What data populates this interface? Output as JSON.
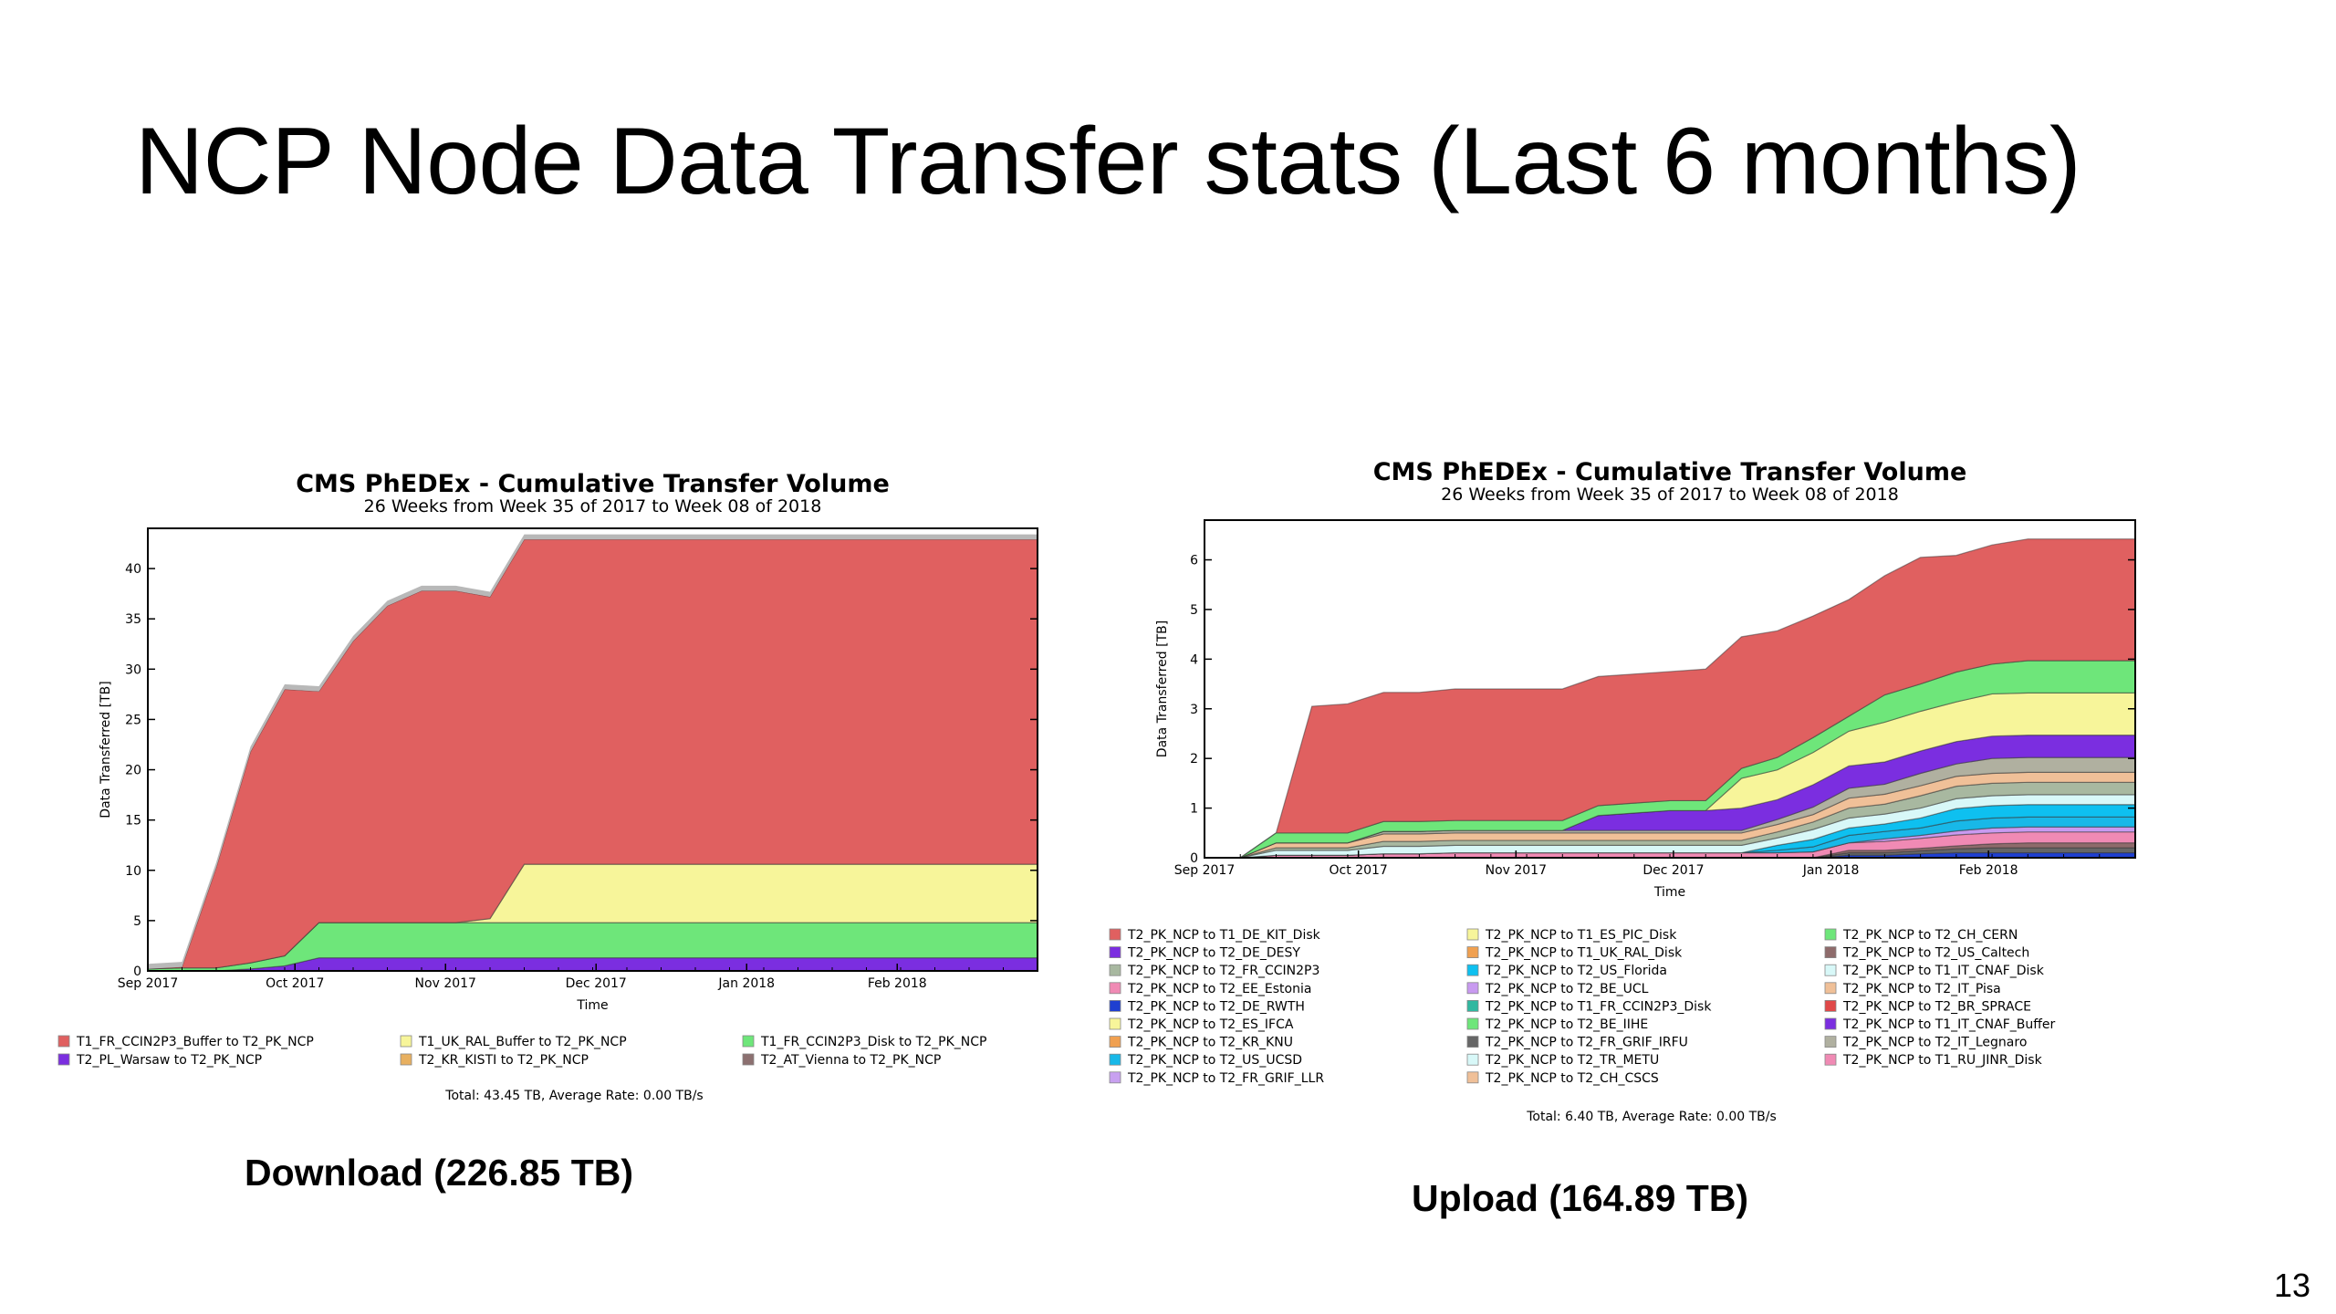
{
  "slide": {
    "title": "NCP Node Data Transfer stats (Last 6 months)",
    "caption_left": "Download (226.85 TB)",
    "caption_right": "Upload (164.89 TB)",
    "page_number": "13"
  },
  "chart_data": [
    {
      "type": "area",
      "stacked": true,
      "title": "CMS PhEDEx - Cumulative Transfer Volume",
      "subtitle": "26 Weeks from Week 35 of 2017 to Week 08 of 2018",
      "xlabel": "Time",
      "ylabel": "Data Transferred [TB]",
      "xlim": [
        0,
        26
      ],
      "ylim": [
        0,
        44
      ],
      "yticks": [
        0,
        5,
        10,
        15,
        20,
        25,
        30,
        35,
        40
      ],
      "x_tick_labels": [
        {
          "x": 0,
          "label": "Sep 2017"
        },
        {
          "x": 4.3,
          "label": "Oct 2017"
        },
        {
          "x": 8.7,
          "label": "Nov 2017"
        },
        {
          "x": 13.1,
          "label": "Dec 2017"
        },
        {
          "x": 17.5,
          "label": "Jan 2018"
        },
        {
          "x": 21.9,
          "label": "Feb 2018"
        }
      ],
      "grid": false,
      "legend_position": "bottom",
      "footer": "Total: 43.45 TB, Average Rate: 0.00 TB/s",
      "x": [
        0,
        1,
        2,
        3,
        4,
        5,
        6,
        7,
        8,
        9,
        10,
        11,
        12,
        13,
        14,
        15,
        16,
        17,
        18,
        19,
        20,
        21,
        22,
        23,
        24,
        25,
        26
      ],
      "series": [
        {
          "name": "T2_PL_Warsaw to T2_PK_NCP",
          "color": "#7b2ee0",
          "values": [
            0,
            0,
            0,
            0.2,
            0.5,
            1.3,
            1.3,
            1.3,
            1.3,
            1.3,
            1.3,
            1.3,
            1.3,
            1.3,
            1.3,
            1.3,
            1.3,
            1.3,
            1.3,
            1.3,
            1.3,
            1.3,
            1.3,
            1.3,
            1.3,
            1.3,
            1.3
          ]
        },
        {
          "name": "T1_FR_CCIN2P3_Disk to T2_PK_NCP",
          "color": "#6ee67a",
          "values": [
            0.2,
            0.3,
            0.3,
            0.6,
            1.0,
            3.5,
            3.5,
            3.5,
            3.5,
            3.5,
            3.5,
            3.5,
            3.5,
            3.5,
            3.5,
            3.5,
            3.5,
            3.5,
            3.5,
            3.5,
            3.5,
            3.5,
            3.5,
            3.5,
            3.5,
            3.5,
            3.5
          ]
        },
        {
          "name": "T1_UK_RAL_Buffer to T2_PK_NCP",
          "color": "#f7f59a",
          "values": [
            0,
            0,
            0,
            0,
            0,
            0,
            0,
            0,
            0,
            0,
            0.4,
            5.8,
            5.8,
            5.8,
            5.8,
            5.8,
            5.8,
            5.8,
            5.8,
            5.8,
            5.8,
            5.8,
            5.8,
            5.8,
            5.8,
            5.8,
            5.8
          ]
        },
        {
          "name": "T2_KR_KISTI to T2_PK_NCP",
          "color": "#e8b060",
          "values": [
            0,
            0,
            0,
            0,
            0,
            0,
            0,
            0,
            0,
            0,
            0,
            0,
            0,
            0,
            0,
            0,
            0,
            0,
            0,
            0,
            0,
            0,
            0,
            0,
            0,
            0,
            0
          ]
        },
        {
          "name": "T2_AT_Vienna to T2_PK_NCP",
          "color": "#8c7070",
          "values": [
            0,
            0,
            0,
            0,
            0,
            0,
            0,
            0,
            0,
            0,
            0,
            0,
            0,
            0,
            0,
            0,
            0,
            0,
            0,
            0,
            0,
            0,
            0,
            0,
            0,
            0,
            0
          ]
        },
        {
          "name": "T1_FR_CCIN2P3_Buffer to T2_PK_NCP",
          "color": "#e06060",
          "values": [
            0,
            0.1,
            10,
            21,
            26.5,
            23,
            28,
            31.5,
            33,
            33,
            32,
            32.3,
            32.3,
            32.3,
            32.3,
            32.3,
            32.3,
            32.3,
            32.3,
            32.3,
            32.3,
            32.3,
            32.3,
            32.3,
            32.3,
            32.3,
            32.3
          ]
        }
      ],
      "top_band": {
        "color": "#b8b8b8",
        "value": 0.5
      }
    },
    {
      "type": "area",
      "stacked": true,
      "title": "CMS PhEDEx - Cumulative Transfer Volume",
      "subtitle": "26 Weeks from Week 35 of 2017 to Week 08 of 2018",
      "xlabel": "Time",
      "ylabel": "Data Transferred [TB]",
      "xlim": [
        0,
        26
      ],
      "ylim": [
        0,
        6.8
      ],
      "yticks": [
        0,
        1,
        2,
        3,
        4,
        5,
        6
      ],
      "x_tick_labels": [
        {
          "x": 0,
          "label": "Sep 2017"
        },
        {
          "x": 4.3,
          "label": "Oct 2017"
        },
        {
          "x": 8.7,
          "label": "Nov 2017"
        },
        {
          "x": 13.1,
          "label": "Dec 2017"
        },
        {
          "x": 17.5,
          "label": "Jan 2018"
        },
        {
          "x": 21.9,
          "label": "Feb 2018"
        }
      ],
      "grid": false,
      "legend_position": "bottom",
      "footer": "Total: 6.40 TB, Average Rate: 0.00 TB/s",
      "x": [
        0,
        1,
        2,
        3,
        4,
        5,
        6,
        7,
        8,
        9,
        10,
        11,
        12,
        13,
        14,
        15,
        16,
        17,
        18,
        19,
        20,
        21,
        22,
        23,
        24,
        25,
        26
      ],
      "series": [
        {
          "name": "T2_PK_NCP to T2_DE_RWTH",
          "color": "#1f3fd0",
          "values": [
            0,
            0,
            0,
            0,
            0,
            0,
            0,
            0,
            0,
            0,
            0,
            0,
            0,
            0,
            0,
            0,
            0,
            0,
            0.05,
            0.05,
            0.08,
            0.1,
            0.1,
            0.1,
            0.1,
            0.1,
            0.1
          ]
        },
        {
          "name": "T2_PK_NCP to T2_FR_GRIF_IRFU",
          "color": "#666666",
          "values": [
            0,
            0,
            0,
            0,
            0,
            0,
            0,
            0,
            0,
            0,
            0,
            0,
            0,
            0,
            0,
            0,
            0,
            0,
            0.05,
            0.05,
            0.06,
            0.08,
            0.1,
            0.1,
            0.1,
            0.1,
            0.1
          ]
        },
        {
          "name": "T2_PK_NCP to T2_US_Caltech",
          "color": "#8e6b6b",
          "values": [
            0,
            0,
            0,
            0,
            0,
            0,
            0,
            0,
            0,
            0,
            0,
            0,
            0,
            0,
            0,
            0,
            0,
            0,
            0.05,
            0.05,
            0.05,
            0.06,
            0.08,
            0.1,
            0.1,
            0.1,
            0.1
          ]
        },
        {
          "name": "T2_PK_NCP to T2_EE_Estonia",
          "color": "#f08ab4",
          "values": [
            0,
            0,
            0.05,
            0.05,
            0.05,
            0.08,
            0.08,
            0.1,
            0.1,
            0.1,
            0.1,
            0.1,
            0.1,
            0.1,
            0.1,
            0.1,
            0.1,
            0.12,
            0.15,
            0.18,
            0.2,
            0.22,
            0.22,
            0.22,
            0.22,
            0.22,
            0.22
          ]
        },
        {
          "name": "T2_PK_NCP to T2_BE_UCL",
          "color": "#c89af0",
          "values": [
            0,
            0,
            0,
            0,
            0,
            0,
            0,
            0,
            0,
            0,
            0,
            0,
            0,
            0,
            0,
            0,
            0,
            0,
            0,
            0.05,
            0.06,
            0.08,
            0.1,
            0.1,
            0.1,
            0.1,
            0.1
          ]
        },
        {
          "name": "T2_PK_NCP to T2_US_UCSD",
          "color": "#18b8e8",
          "values": [
            0,
            0,
            0,
            0,
            0,
            0,
            0,
            0,
            0,
            0,
            0,
            0,
            0,
            0,
            0,
            0,
            0.05,
            0.1,
            0.15,
            0.15,
            0.15,
            0.2,
            0.2,
            0.2,
            0.2,
            0.2,
            0.2
          ]
        },
        {
          "name": "T2_PK_NCP to T2_US_Florida",
          "color": "#0ec0f0",
          "values": [
            0,
            0,
            0,
            0,
            0,
            0,
            0,
            0,
            0,
            0,
            0,
            0,
            0,
            0,
            0,
            0,
            0.1,
            0.15,
            0.15,
            0.15,
            0.2,
            0.25,
            0.25,
            0.25,
            0.25,
            0.25,
            0.25
          ]
        },
        {
          "name": "T2_PK_NCP to T1_IT_CNAF_Disk",
          "color": "#d8f8f8",
          "values": [
            0,
            0,
            0.1,
            0.1,
            0.1,
            0.15,
            0.15,
            0.15,
            0.15,
            0.15,
            0.15,
            0.15,
            0.15,
            0.15,
            0.15,
            0.15,
            0.15,
            0.2,
            0.2,
            0.2,
            0.2,
            0.2,
            0.2,
            0.2,
            0.2,
            0.2,
            0.2
          ]
        },
        {
          "name": "T2_PK_NCP to T2_FR_CCIN2P3",
          "color": "#a8b8a0",
          "values": [
            0,
            0,
            0.05,
            0.05,
            0.05,
            0.1,
            0.1,
            0.1,
            0.1,
            0.1,
            0.1,
            0.1,
            0.1,
            0.1,
            0.1,
            0.1,
            0.12,
            0.15,
            0.2,
            0.2,
            0.25,
            0.25,
            0.25,
            0.25,
            0.25,
            0.25,
            0.25
          ]
        },
        {
          "name": "T2_PK_NCP to T2_CH_CSCS",
          "color": "#f0c098",
          "values": [
            0,
            0,
            0.1,
            0.1,
            0.1,
            0.15,
            0.15,
            0.15,
            0.15,
            0.15,
            0.15,
            0.15,
            0.15,
            0.15,
            0.15,
            0.15,
            0.15,
            0.15,
            0.2,
            0.2,
            0.2,
            0.2,
            0.2,
            0.2,
            0.2,
            0.2,
            0.2
          ]
        },
        {
          "name": "T2_PK_NCP to T2_IT_Legnaro",
          "color": "#b0b0a0",
          "values": [
            0,
            0,
            0,
            0,
            0,
            0.05,
            0.05,
            0.05,
            0.05,
            0.05,
            0.05,
            0.05,
            0.05,
            0.05,
            0.05,
            0.05,
            0.1,
            0.15,
            0.2,
            0.2,
            0.25,
            0.25,
            0.3,
            0.3,
            0.3,
            0.3,
            0.3
          ]
        },
        {
          "name": "T2_PK_NCP to T2_DE_DESY",
          "color": "#7b2ee0",
          "values": [
            0,
            0,
            0,
            0,
            0,
            0,
            0,
            0,
            0,
            0,
            0,
            0.3,
            0.35,
            0.4,
            0.4,
            0.45,
            0.4,
            0.45,
            0.45,
            0.45,
            0.45,
            0.45,
            0.45,
            0.45,
            0.45,
            0.45,
            0.45
          ]
        },
        {
          "name": "T2_PK_NCP to T2_ES_IFCA",
          "color": "#f7f59a",
          "values": [
            0,
            0,
            0,
            0,
            0,
            0,
            0,
            0,
            0,
            0,
            0,
            0,
            0,
            0,
            0,
            0.6,
            0.6,
            0.65,
            0.7,
            0.8,
            0.8,
            0.8,
            0.85,
            0.85,
            0.85,
            0.85,
            0.85
          ]
        },
        {
          "name": "T2_PK_NCP to T2_CH_CERN",
          "color": "#6ee67a",
          "values": [
            0,
            0,
            0.2,
            0.2,
            0.2,
            0.2,
            0.2,
            0.2,
            0.2,
            0.2,
            0.2,
            0.2,
            0.2,
            0.2,
            0.2,
            0.2,
            0.25,
            0.3,
            0.3,
            0.55,
            0.55,
            0.6,
            0.6,
            0.65,
            0.65,
            0.65,
            0.65
          ]
        },
        {
          "name": "T2_PK_NCP to T1_DE_KIT_Disk",
          "color": "#e06060",
          "values": [
            0,
            0,
            0,
            2.55,
            2.6,
            2.6,
            2.6,
            2.65,
            2.65,
            2.65,
            2.65,
            2.6,
            2.6,
            2.6,
            2.65,
            2.65,
            2.55,
            2.45,
            2.35,
            2.4,
            2.55,
            2.35,
            2.4,
            2.45,
            2.45,
            2.45,
            2.45
          ]
        }
      ],
      "legend_entries": [
        {
          "name": "T2_PK_NCP to T1_DE_KIT_Disk",
          "color": "#e06060"
        },
        {
          "name": "T2_PK_NCP to T2_DE_DESY",
          "color": "#7b2ee0"
        },
        {
          "name": "T2_PK_NCP to T2_FR_CCIN2P3",
          "color": "#a8b8a0"
        },
        {
          "name": "T2_PK_NCP to T2_EE_Estonia",
          "color": "#f08ab4"
        },
        {
          "name": "T2_PK_NCP to T2_DE_RWTH",
          "color": "#1f3fd0"
        },
        {
          "name": "T2_PK_NCP to T2_ES_IFCA",
          "color": "#f7f59a"
        },
        {
          "name": "T2_PK_NCP to T2_KR_KNU",
          "color": "#f0a050"
        },
        {
          "name": "T2_PK_NCP to T2_US_UCSD",
          "color": "#18b8e8"
        },
        {
          "name": "T2_PK_NCP to T2_FR_GRIF_LLR",
          "color": "#c8a0f0"
        },
        {
          "name": "T2_PK_NCP to T1_ES_PIC_Disk",
          "color": "#f7f59a"
        },
        {
          "name": "T2_PK_NCP to T1_UK_RAL_Disk",
          "color": "#f0a050"
        },
        {
          "name": "T2_PK_NCP to T2_US_Florida",
          "color": "#0ec0f0"
        },
        {
          "name": "T2_PK_NCP to T2_BE_UCL",
          "color": "#c89af0"
        },
        {
          "name": "T2_PK_NCP to T1_FR_CCIN2P3_Disk",
          "color": "#30b8a0"
        },
        {
          "name": "T2_PK_NCP to T2_BE_IIHE",
          "color": "#6ee67a"
        },
        {
          "name": "T2_PK_NCP to T2_FR_GRIF_IRFU",
          "color": "#666666"
        },
        {
          "name": "T2_PK_NCP to T2_TR_METU",
          "color": "#d8f8f8"
        },
        {
          "name": "T2_PK_NCP to T2_CH_CSCS",
          "color": "#f0c098"
        },
        {
          "name": "T2_PK_NCP to T2_CH_CERN",
          "color": "#6ee67a"
        },
        {
          "name": "T2_PK_NCP to T2_US_Caltech",
          "color": "#8e6b6b"
        },
        {
          "name": "T2_PK_NCP to T1_IT_CNAF_Disk",
          "color": "#d8f8f8"
        },
        {
          "name": "T2_PK_NCP to T2_IT_Pisa",
          "color": "#f0c098"
        },
        {
          "name": "T2_PK_NCP to T2_BR_SPRACE",
          "color": "#e04848"
        },
        {
          "name": "T2_PK_NCP to T1_IT_CNAF_Buffer",
          "color": "#7b2ee0"
        },
        {
          "name": "T2_PK_NCP to T2_IT_Legnaro",
          "color": "#b0b0a0"
        },
        {
          "name": "T2_PK_NCP to T1_RU_JINR_Disk",
          "color": "#f08ab4"
        }
      ]
    }
  ]
}
